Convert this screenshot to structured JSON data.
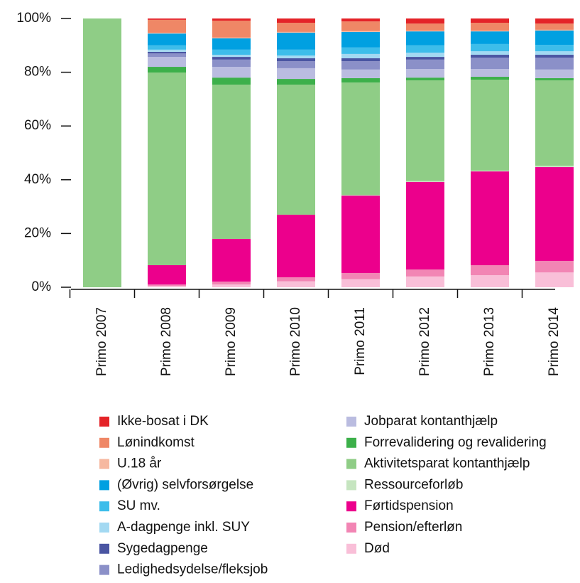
{
  "chart_data": {
    "type": "stacked_bar",
    "categories": [
      "Primo 2007",
      "Primo 2008",
      "Primo 2009",
      "Primo 2010",
      "Primo 2011",
      "Primo 2012",
      "Primo 2013",
      "Primo 2014"
    ],
    "ylim": [
      0,
      100
    ],
    "yticks": [
      {
        "value": 0,
        "label": "0%"
      },
      {
        "value": 20,
        "label": "20%"
      },
      {
        "value": 40,
        "label": "40%"
      },
      {
        "value": 60,
        "label": "60%"
      },
      {
        "value": 80,
        "label": "80%"
      },
      {
        "value": 100,
        "label": "100%"
      }
    ],
    "series": [
      {
        "name": "Ikke-bosat i DK",
        "color": "#e42328",
        "values": [
          0,
          0.5,
          0.8,
          1.6,
          1.1,
          1.9,
          1.6,
          1.9
        ]
      },
      {
        "name": "Lønindkomst",
        "color": "#ef8766",
        "values": [
          0,
          4.8,
          6.3,
          3.4,
          3.6,
          2.6,
          2.9,
          2.3
        ]
      },
      {
        "name": "U.18 år",
        "color": "#f6b8a0",
        "values": [
          0,
          0.3,
          0.3,
          0.3,
          0.3,
          0.3,
          0.3,
          0.3
        ]
      },
      {
        "name": "(Øvrig) selvforsørgelse",
        "color": "#00a0e1",
        "values": [
          0,
          4.4,
          4.2,
          6.3,
          5.8,
          5.2,
          4.7,
          5.3
        ]
      },
      {
        "name": "SU mv.",
        "color": "#3dbdea",
        "values": [
          0,
          1.6,
          1.9,
          2.2,
          2.4,
          2.7,
          2.7,
          2.4
        ]
      },
      {
        "name": "A-dagpenge inkl. SUY",
        "color": "#a3d9f2",
        "values": [
          0,
          0.8,
          0.8,
          1.0,
          1.6,
          1.6,
          1.3,
          1.3
        ]
      },
      {
        "name": "Sygedagpenge",
        "color": "#4a55a2",
        "values": [
          0,
          0.6,
          1.0,
          1.1,
          1.1,
          1.0,
          1.1,
          1.1
        ]
      },
      {
        "name": "Ledighedsydelse/fleksjob",
        "color": "#8b90c8",
        "values": [
          0,
          1.3,
          2.7,
          2.6,
          3.1,
          3.5,
          4.2,
          4.4
        ]
      },
      {
        "name": "Jobparat kontanthjælp",
        "color": "#babce0",
        "values": [
          0,
          3.7,
          4.0,
          4.0,
          3.2,
          3.2,
          2.9,
          3.2
        ]
      },
      {
        "name": "Forrevalidering og revalidering",
        "color": "#3cb04a",
        "values": [
          0,
          2.1,
          2.6,
          2.1,
          1.6,
          1.0,
          1.1,
          0.8
        ]
      },
      {
        "name": "Aktivitetsparat kontanthjælp",
        "color": "#8fcd86",
        "values": [
          100,
          71.7,
          57.4,
          48.4,
          41.9,
          37.5,
          33.8,
          31.8
        ]
      },
      {
        "name": "Ressourceforløb",
        "color": "#c6e5c0",
        "values": [
          0,
          0,
          0,
          0,
          0.2,
          0.3,
          0.3,
          0.5
        ]
      },
      {
        "name": "Førtidspension",
        "color": "#ec008c",
        "values": [
          0,
          7.2,
          15.9,
          23.3,
          28.8,
          32.6,
          34.9,
          34.9
        ]
      },
      {
        "name": "Pension/efterløn",
        "color": "#f285b4",
        "values": [
          0,
          0.5,
          1.1,
          1.5,
          2.3,
          2.6,
          3.7,
          4.3
        ]
      },
      {
        "name": "Død",
        "color": "#f9bfd8",
        "values": [
          0,
          0.5,
          1.0,
          2.2,
          3.0,
          4.0,
          4.5,
          5.5
        ]
      }
    ]
  }
}
